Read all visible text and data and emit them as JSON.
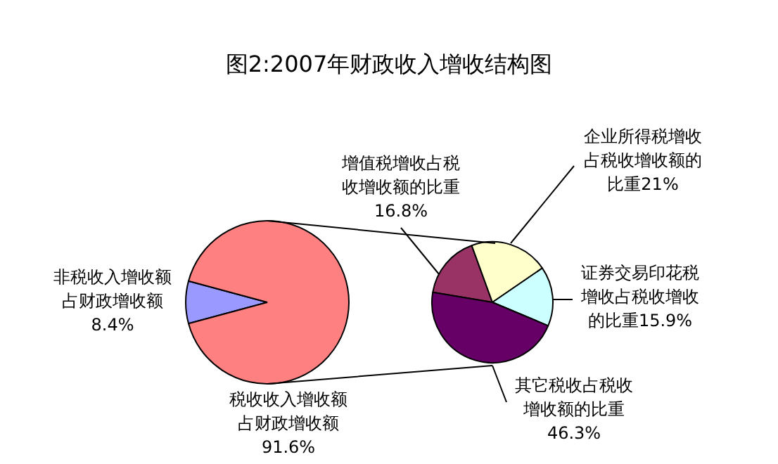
{
  "chart_data": [
    {
      "type": "pie",
      "title": "图2:2007年财政收入增收结构图",
      "categories": [
        "非税收入增收额占财政增收额",
        "税收收入增收额占财政增收额"
      ],
      "values": [
        8.4,
        91.6
      ],
      "colors": [
        "#9999ff",
        "#ff8080"
      ],
      "value_labels": [
        "8.4%",
        "91.6%"
      ]
    },
    {
      "type": "pie",
      "categories": [
        "增值税增收占税收增收额的比重",
        "企业所得税增收占税收增收额的比重",
        "证券交易印花税增收占税收增收的比重",
        "其它税收占税收增收额的比重"
      ],
      "values": [
        16.8,
        21,
        15.9,
        46.3
      ],
      "colors": [
        "#993366",
        "#ffffcc",
        "#ccffff",
        "#660066"
      ],
      "value_labels": [
        "16.8%",
        "21%",
        "15.9%",
        "46.3%"
      ]
    }
  ]
}
